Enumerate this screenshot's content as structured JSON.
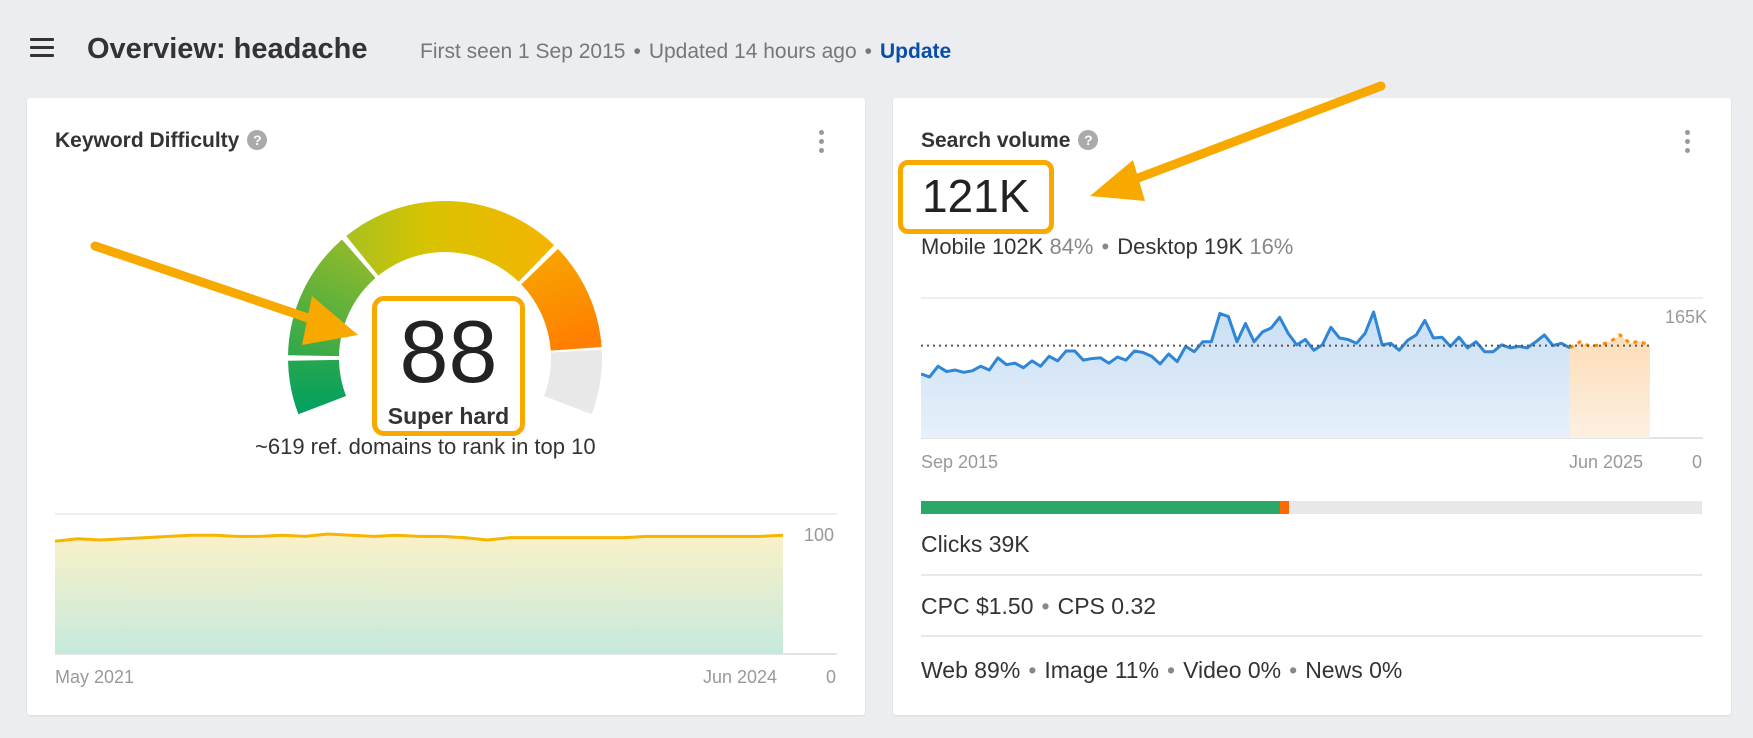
{
  "header": {
    "title": "Overview: headache",
    "first_seen": "First seen 1 Sep 2015",
    "updated": "Updated 14 hours ago",
    "update_link": "Update",
    "sep": "•"
  },
  "kd": {
    "title": "Keyword Difficulty",
    "help": "?",
    "value": "88",
    "label": "Super hard",
    "note": "~619 ref. domains to rank in top 10",
    "chart": {
      "type": "area",
      "x_start": "May 2021",
      "x_end": "Jun 2024",
      "y_max_label": "100",
      "y_min_label": "0",
      "ylim": [
        0,
        100
      ],
      "values": [
        94,
        96,
        95,
        96,
        97,
        98,
        99,
        99,
        98,
        98,
        99,
        98,
        100,
        99,
        98,
        99,
        98,
        98,
        97,
        95,
        97,
        97,
        97,
        97,
        97,
        97,
        98,
        98,
        98,
        98,
        98,
        98,
        99
      ]
    }
  },
  "sv": {
    "title": "Search volume",
    "help": "?",
    "value": "121K",
    "mobile_label": "Mobile",
    "mobile_value": "102K",
    "mobile_pct": "84%",
    "desktop_label": "Desktop",
    "desktop_value": "19K",
    "desktop_pct": "16%",
    "chart": {
      "type": "area",
      "x_start": "Sep 2015",
      "x_end": "Jun 2025",
      "y_max_label": "165K",
      "y_min_label": "0",
      "ylim": [
        0,
        165000
      ],
      "reference_line": 121000,
      "history": [
        84,
        80,
        94,
        87,
        89,
        86,
        88,
        94,
        89,
        105,
        96,
        98,
        92,
        101,
        94,
        107,
        101,
        114,
        114,
        102,
        104,
        105,
        98,
        106,
        102,
        114,
        112,
        107,
        97,
        110,
        100,
        120,
        113,
        126,
        126,
        163,
        159,
        126,
        150,
        126,
        139,
        144,
        158,
        137,
        122,
        129,
        115,
        122,
        145,
        131,
        129,
        124,
        137,
        165,
        122,
        124,
        115,
        128,
        135,
        154,
        131,
        132,
        120,
        132,
        118,
        126,
        113,
        113,
        122,
        118,
        120,
        118,
        126,
        135,
        121,
        124,
        118
      ],
      "forecast": [
        118,
        126,
        120,
        122,
        126,
        135,
        124,
        127,
        120
      ]
    },
    "clicks_bar": {
      "clicks_fraction": 0.46,
      "paid_fraction": 0.011,
      "colors": {
        "organic": "#2aa866",
        "paid": "#ff6a00",
        "rest": "#e8e8e8"
      }
    },
    "clicks": "Clicks 39K",
    "cpc": "CPC $1.50",
    "cps": "CPS 0.32",
    "serp": [
      "Web 89%",
      "Image 11%",
      "Video 0%",
      "News 0%"
    ]
  },
  "colors": {
    "accent": "#f7a900",
    "link": "#0a4fa6",
    "line": "#2f86d6",
    "kd_line": "#f7b500"
  }
}
